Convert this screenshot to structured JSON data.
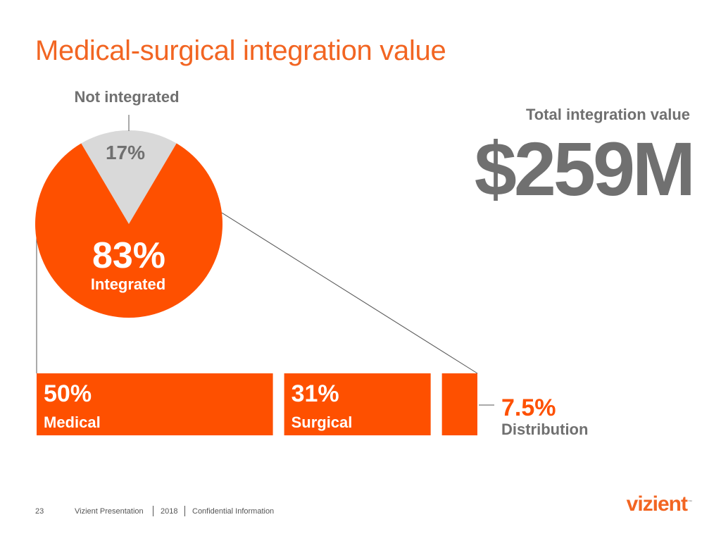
{
  "slide": {
    "title": "Medical-surgical integration value",
    "total_label": "Total integration value",
    "total_value": "$259M"
  },
  "footer": {
    "page_number": "23",
    "presenter": "Vizient Presentation",
    "year": "2018",
    "confidentiality": "Confidential Information"
  },
  "logo": {
    "text": "vizient",
    "tm": "™"
  },
  "colors": {
    "accent": "#fe5000",
    "gray_slice": "#d9d9d9",
    "text_gray": "#707070",
    "title_orange": "#f26522"
  },
  "chart_data": [
    {
      "type": "pie",
      "slices": [
        {
          "label": "Not integrated",
          "value": 17,
          "value_label": "17%",
          "color": "#d9d9d9"
        },
        {
          "label": "Integrated",
          "value": 83,
          "value_label": "83%",
          "color": "#fe5000"
        }
      ]
    },
    {
      "type": "bar",
      "orientation": "horizontal-stacked",
      "categories": [
        "Medical",
        "Surgical",
        "Distribution"
      ],
      "values": [
        50,
        31,
        7.5
      ],
      "value_labels": [
        "50%",
        "31%",
        "7.5%"
      ]
    }
  ]
}
